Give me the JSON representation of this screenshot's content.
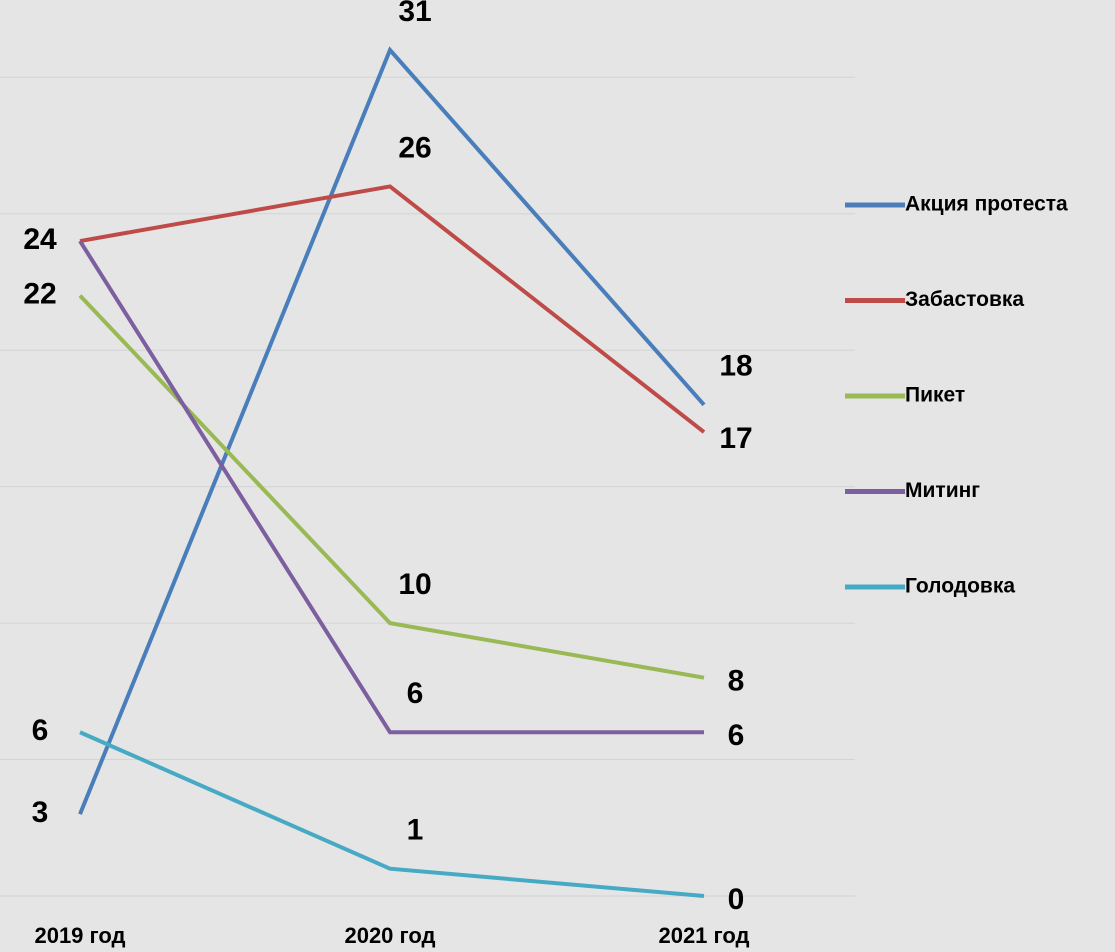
{
  "chart_data": {
    "type": "line",
    "categories": [
      "2019 год",
      "2020 год",
      "2021 год"
    ],
    "series": [
      {
        "name": "Акция протеста",
        "color": "#4a7ebb",
        "values": [
          3,
          31,
          18
        ]
      },
      {
        "name": "Забастовка",
        "color": "#be4b48",
        "values": [
          24,
          26,
          17
        ]
      },
      {
        "name": "Пикет",
        "color": "#98b954",
        "values": [
          22,
          10,
          8
        ]
      },
      {
        "name": "Митинг",
        "color": "#7d5fa0",
        "values": [
          24,
          6,
          6
        ]
      },
      {
        "name": "Голодовка",
        "color": "#46aac5",
        "values": [
          6,
          1,
          0
        ]
      }
    ],
    "ylim": [
      0,
      31
    ],
    "yticks": [
      0,
      5,
      10,
      15,
      20,
      25,
      30
    ],
    "grid": true,
    "legend": "right"
  }
}
